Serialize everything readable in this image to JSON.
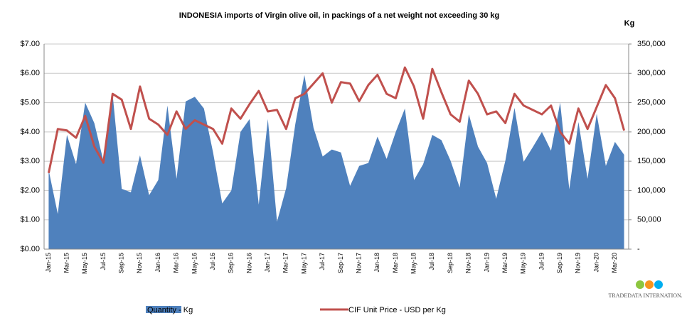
{
  "chart_data": {
    "type": "area-line",
    "title": "INDONESIA imports of Virgin olive oil, in packings of a net weight not exceeding 30 kg",
    "y2_label": "Kg",
    "logo": "TRADEDATA INTERNATIONAL",
    "categories": [
      "Jan-15",
      null,
      "Mar-15",
      null,
      "May-15",
      null,
      "Jul-15",
      null,
      "Sep-15",
      null,
      "Nov-15",
      null,
      "Jan-16",
      null,
      "Mar-16",
      null,
      "May-16",
      null,
      "Jul-16",
      null,
      "Sep-16",
      null,
      "Nov-16",
      null,
      "Jan-17",
      null,
      "Mar-17",
      null,
      "May-17",
      null,
      "Jul-17",
      null,
      "Sep-17",
      null,
      "Nov-17",
      null,
      "Jan-18",
      null,
      "Mar-18",
      null,
      "May-18",
      null,
      "Jul-18",
      null,
      "Sep-18",
      null,
      "Nov-18",
      null,
      "Jan-19",
      null,
      "Mar-19",
      null,
      "May-19",
      null,
      "Jul-19",
      null,
      "Sep-19",
      null,
      "Nov-19",
      null,
      "Jan-20",
      null,
      "Mar-20",
      null
    ],
    "series": [
      {
        "name": "Quantity - Kg",
        "color": "#4f81bd",
        "axis": "y2",
        "kind": "area",
        "values": [
          135000,
          60000,
          195000,
          145000,
          250000,
          215000,
          150000,
          265000,
          103000,
          97000,
          160000,
          92000,
          118000,
          245000,
          120000,
          252000,
          260000,
          240000,
          165000,
          78000,
          100000,
          200000,
          222000,
          76000,
          222000,
          47000,
          104000,
          213000,
          297000,
          207000,
          158000,
          170000,
          165000,
          108000,
          142000,
          147000,
          192000,
          154000,
          200000,
          240000,
          118000,
          145000,
          195000,
          186000,
          151000,
          105000,
          230000,
          175000,
          147000,
          86000,
          151000,
          241000,
          149000,
          174000,
          200000,
          168000,
          250000,
          102000,
          217000,
          120000,
          231000,
          142000,
          183000,
          161000
        ]
      },
      {
        "name": "CIF Unit Price - USD per Kg",
        "color": "#c0504d",
        "axis": "y",
        "kind": "line",
        "values": [
          2.6,
          4.1,
          4.05,
          3.8,
          4.55,
          3.5,
          2.95,
          5.3,
          5.1,
          4.1,
          5.55,
          4.45,
          4.25,
          3.9,
          4.7,
          4.1,
          4.4,
          4.25,
          4.1,
          3.6,
          4.8,
          4.45,
          4.95,
          5.4,
          4.7,
          4.75,
          4.1,
          5.15,
          5.3,
          5.65,
          6.0,
          5.0,
          5.7,
          5.65,
          5.05,
          5.6,
          5.95,
          5.3,
          5.15,
          6.2,
          5.55,
          4.45,
          6.15,
          5.35,
          4.6,
          4.35,
          5.75,
          5.3,
          4.6,
          4.7,
          4.3,
          5.3,
          4.9,
          4.75,
          4.6,
          4.9,
          4.0,
          3.6,
          4.8,
          4.1,
          4.85,
          5.6,
          5.15,
          4.05
        ]
      }
    ],
    "ylim": [
      0,
      7
    ],
    "yticks": [
      {
        "value": 0,
        "label": "$0.00"
      },
      {
        "value": 1,
        "label": "$1.00"
      },
      {
        "value": 2,
        "label": "$2.00"
      },
      {
        "value": 3,
        "label": "$3.00"
      },
      {
        "value": 4,
        "label": "$4.00"
      },
      {
        "value": 5,
        "label": "$5.00"
      },
      {
        "value": 6,
        "label": "$6.00"
      },
      {
        "value": 7,
        "label": "$7.00"
      }
    ],
    "y2lim": [
      0,
      350000
    ],
    "y2ticks": [
      {
        "value": 0,
        "label": "-"
      },
      {
        "value": 50000,
        "label": "50,000"
      },
      {
        "value": 100000,
        "label": "100,000"
      },
      {
        "value": 150000,
        "label": "150,000"
      },
      {
        "value": 200000,
        "label": "200,000"
      },
      {
        "value": 250000,
        "label": "250,000"
      },
      {
        "value": 300000,
        "label": "300,000"
      },
      {
        "value": 350000,
        "label": "350,000"
      }
    ],
    "grid": true,
    "legend": "bottom"
  }
}
